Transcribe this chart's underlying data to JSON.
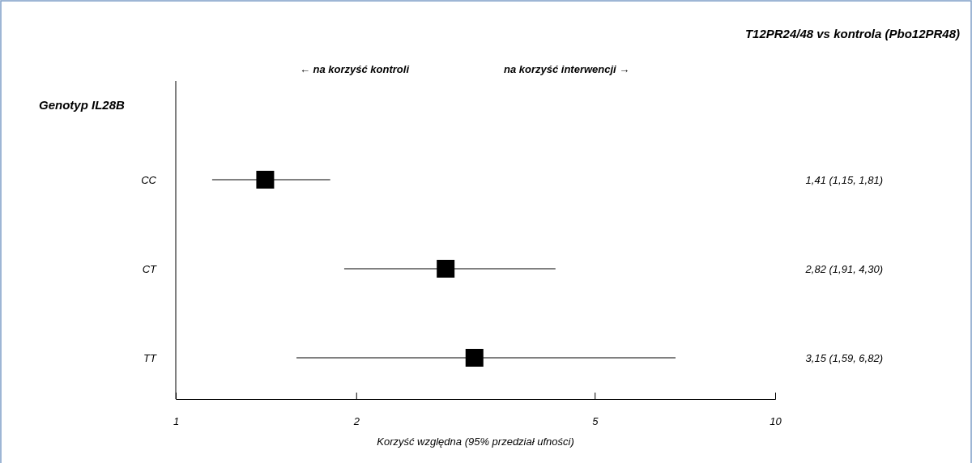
{
  "chart_data": {
    "type": "scatter",
    "title": "T12PR24/48 vs kontrola (Pbo12PR48)",
    "xlabel": "Korzyść względna (95% przedział ufności)",
    "ylabel": "Genotyp IL28B",
    "orientation": "horizontal",
    "categories": [
      "CC",
      "CT",
      "TT"
    ],
    "values": [
      1.41,
      2.82,
      3.15
    ],
    "errors": [
      [
        1.15,
        1.81
      ],
      [
        1.91,
        4.3
      ],
      [
        1.59,
        6.82
      ]
    ],
    "value_labels": [
      "1,41 (1,15, 1,81)",
      "2,82 (1,91, 4,30)",
      "3,15 (1,59, 6,82)"
    ],
    "color": "#000000",
    "marker": "square",
    "log": "x",
    "xlim": [
      1,
      10
    ],
    "xticks": [
      1,
      2,
      5,
      10
    ],
    "annotations": [
      "← na korzyść kontroli",
      "na korzyść interwencji →"
    ]
  }
}
